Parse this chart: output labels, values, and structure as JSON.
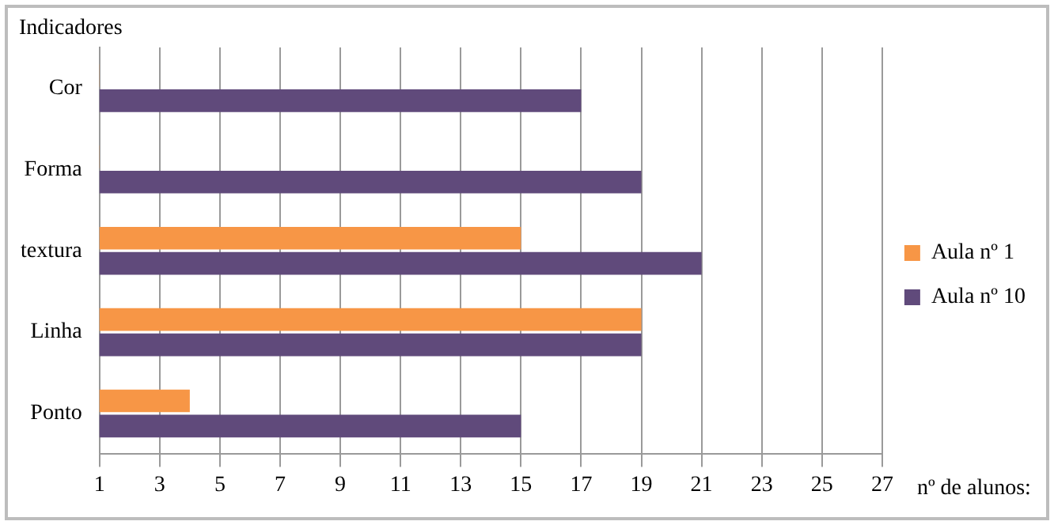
{
  "chart_data": {
    "type": "bar",
    "orientation": "horizontal",
    "ylabel": "Indicadores",
    "xlabel": "nº de alunos:",
    "categories": [
      "Cor",
      "Forma",
      "textura",
      "Linha",
      "Ponto"
    ],
    "series": [
      {
        "name": "Aula nº 1",
        "color": "#f79646",
        "values": [
          1,
          1,
          15,
          19,
          4
        ]
      },
      {
        "name": "Aula nº 10",
        "color": "#604a7b",
        "values": [
          17,
          19,
          21,
          19,
          15
        ]
      }
    ],
    "xlim": [
      1,
      27
    ],
    "xticks": [
      1,
      3,
      5,
      7,
      9,
      11,
      13,
      15,
      17,
      19,
      21,
      23,
      25,
      27
    ],
    "grid": "x",
    "legend": "right"
  }
}
